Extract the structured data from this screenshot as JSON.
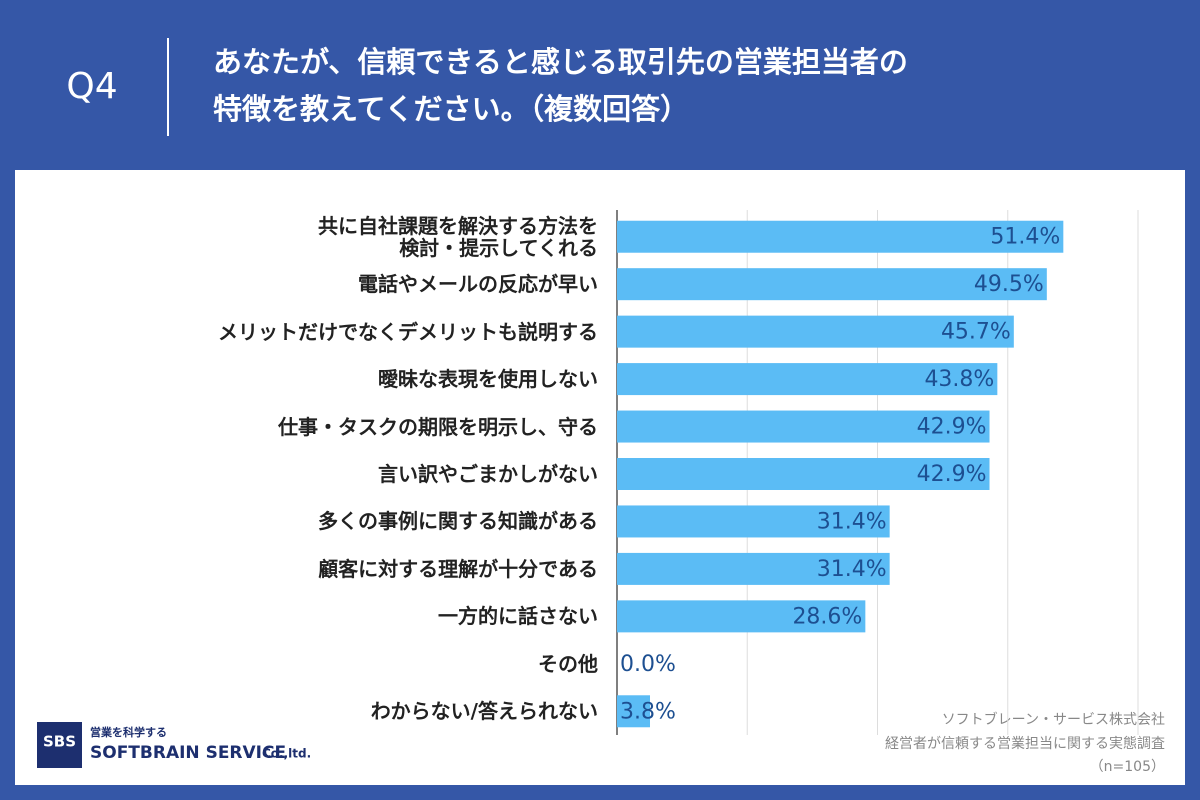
{
  "header": {
    "question": "Q4",
    "title": [
      "あなたが、信頼できると感じる取引先の営業担当者の",
      "特徴を教えてください。（複数回答）"
    ]
  },
  "chart_data": {
    "type": "bar",
    "categories": [
      "共に自社課題を解決する方法を\n検討・提示してくれる",
      "電話やメールの反応が早い",
      "メリットだけでなくデメリットも説明する",
      "曖昧な表現を使用しない",
      "仕事・タスクの期限を明示し、守る",
      "言い訳やごまかしがない",
      "多くの事例に関する知識がある",
      "顧客に対する理解が十分である",
      "一方的に話さない",
      "その他",
      "わからない/答えられない"
    ],
    "values": [
      51.4,
      49.5,
      45.7,
      43.8,
      42.9,
      42.9,
      31.4,
      31.4,
      28.6,
      0.0,
      3.8
    ],
    "value_labels": [
      "51.4%",
      "49.5%",
      "45.7%",
      "43.8%",
      "42.9%",
      "42.9%",
      "31.4%",
      "31.4%",
      "28.6%",
      "0.0%",
      "3.8%"
    ],
    "color": "#5bbcf5",
    "xlim": [
      0,
      60
    ],
    "xticks": [
      0,
      15,
      30,
      45,
      60
    ],
    "grid": true
  },
  "source": [
    "ソフトブレーン・サービス株式会社",
    "経営者が信頼する営業担当に関する実態調査",
    "（n=105）"
  ],
  "logo": {
    "mark": "SBS",
    "tagline": "営業を科学する",
    "name": "SOFTBRAIN SERVICE",
    "suffix": "Co.,ltd."
  }
}
